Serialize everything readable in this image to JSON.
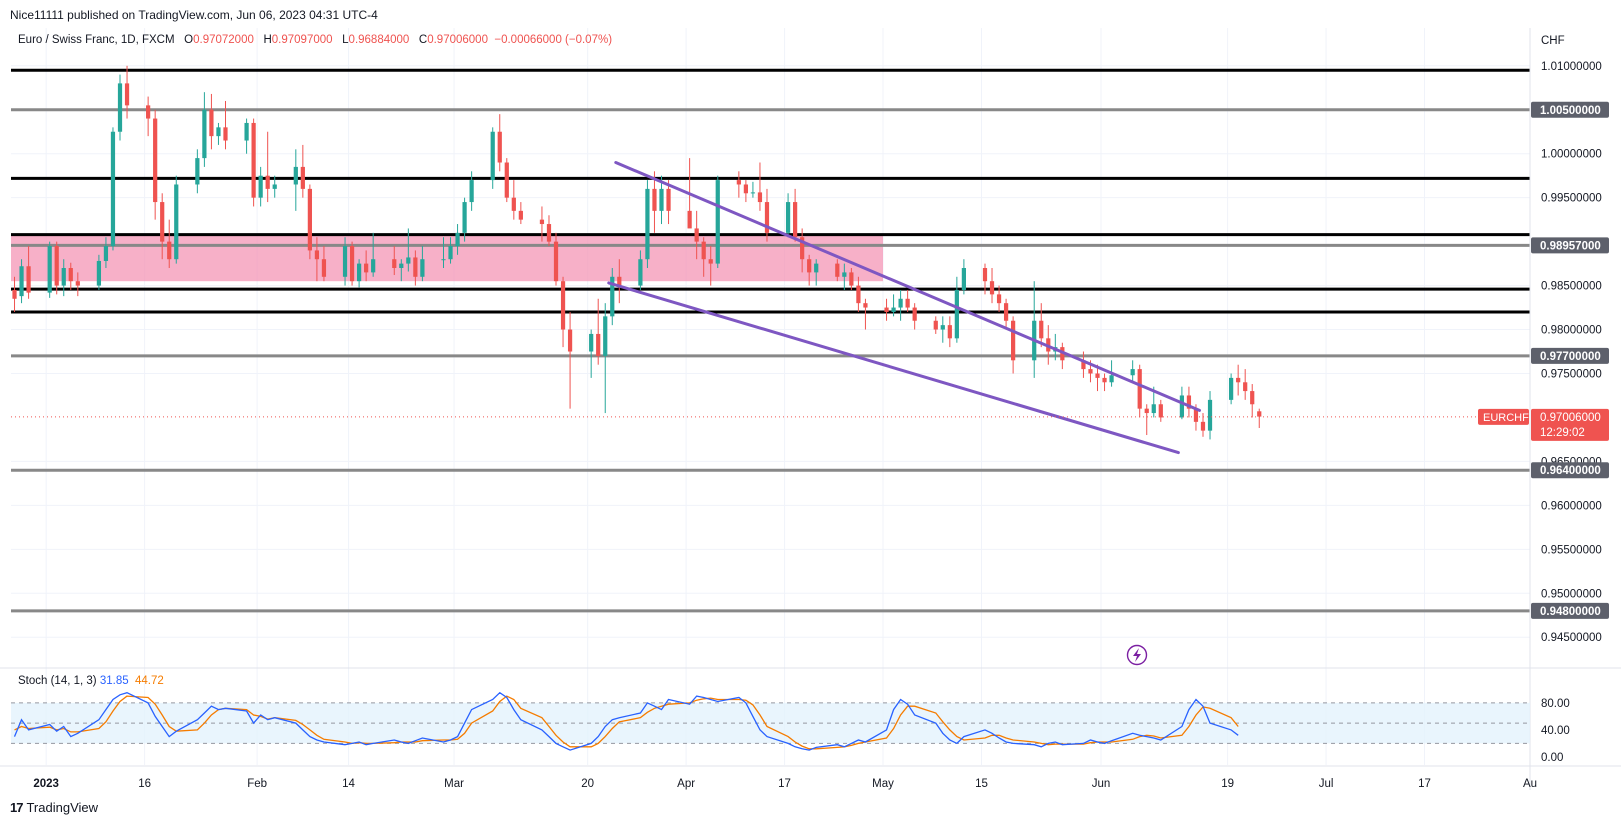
{
  "header": {
    "published_by": "Nice11111 published on TradingView.com, Jun 06, 2023 04:31 UTC-4"
  },
  "legend": {
    "symbol": "Euro / Swiss Franc, 1D, FXCM",
    "o_label": "O",
    "o_value": "0.97072000",
    "h_label": "H",
    "h_value": "0.97097000",
    "l_label": "L",
    "l_value": "0.96884000",
    "c_label": "C",
    "c_value": "0.97006000",
    "change": "−0.00066000 (−0.07%)"
  },
  "stoch_legend": {
    "name": "Stoch (14, 1, 3)",
    "k_value": "31.85",
    "d_value": "44.72"
  },
  "branding": {
    "logo": "17",
    "name": "TradingView"
  },
  "colors": {
    "up": "#26a69a",
    "down": "#ef5350",
    "channel": "#7e57c2",
    "zone": "#f48fb1",
    "stoch_k": "#2962ff",
    "stoch_d": "#f57c00",
    "stoch_band": "#e3f2fd"
  },
  "chart_data": {
    "type": "candlestick",
    "currency_label": "CHF",
    "y_ticks": [
      "1.01000000",
      "1.00000000",
      "0.99500000",
      "0.98500000",
      "0.98000000",
      "0.97500000",
      "0.96500000",
      "0.96000000",
      "0.95500000",
      "0.95000000",
      "0.94500000"
    ],
    "y_range": [
      0.9415,
      1.0143
    ],
    "x_tick_labels": [
      "2023",
      "16",
      "Feb",
      "14",
      "Mar",
      "20",
      "Apr",
      "17",
      "May",
      "15",
      "Jun",
      "19",
      "Jul",
      "17",
      "Au"
    ],
    "x_tick_dates": [
      "2023-01-02",
      "2023-01-16",
      "2023-02-01",
      "2023-02-14",
      "2023-03-01",
      "2023-03-20",
      "2023-04-03",
      "2023-04-17",
      "2023-05-01",
      "2023-05-15",
      "2023-06-01",
      "2023-06-19",
      "2023-07-03",
      "2023-07-17",
      "2023-08-01"
    ],
    "date_range": [
      "2022-12-28",
      "2023-08-01"
    ],
    "price_badges": [
      {
        "label": "1.00500000",
        "value": 1.005,
        "style": "gray"
      },
      {
        "label": "0.98957000",
        "value": 0.98957,
        "style": "gray"
      },
      {
        "label": "0.97700000",
        "value": 0.977,
        "style": "gray"
      },
      {
        "label": "0.96400000",
        "value": 0.964,
        "style": "gray"
      },
      {
        "label": "0.94800000",
        "value": 0.948,
        "style": "gray"
      }
    ],
    "current_price": {
      "symbol": "EURCHF",
      "value": 0.97006,
      "label": "0.97006000",
      "countdown": "12:29:02"
    },
    "horizontal_levels": [
      {
        "value": 1.0095,
        "color": "#000000"
      },
      {
        "value": 1.005,
        "color": "#888888"
      },
      {
        "value": 0.9972,
        "color": "#000000"
      },
      {
        "value": 0.9908,
        "color": "#000000"
      },
      {
        "value": 0.98957,
        "color": "#888888"
      },
      {
        "value": 0.9846,
        "color": "#000000"
      },
      {
        "value": 0.982,
        "color": "#000000"
      },
      {
        "value": 0.977,
        "color": "#888888"
      },
      {
        "value": 0.964,
        "color": "#888888"
      },
      {
        "value": 0.948,
        "color": "#888888"
      }
    ],
    "zone": {
      "top": 0.9907,
      "bottom": 0.9855,
      "start": "2022-12-28",
      "end": "2023-05-01"
    },
    "channel_lines": [
      {
        "x1": "2023-03-24",
        "y1": 0.999,
        "x2": "2023-06-15",
        "y2": 0.9708
      },
      {
        "x1": "2023-03-23",
        "y1": 0.9853,
        "x2": "2023-06-12",
        "y2": 0.966
      }
    ],
    "candles": [
      [
        "2022-12-28",
        0.9845,
        0.986,
        0.982,
        0.9835
      ],
      [
        "2022-12-29",
        0.9838,
        0.988,
        0.983,
        0.9872
      ],
      [
        "2022-12-30",
        0.9872,
        0.9895,
        0.9835,
        0.9842
      ],
      [
        "2023-01-02",
        0.9842,
        0.99,
        0.9836,
        0.9895
      ],
      [
        "2023-01-03",
        0.9895,
        0.99,
        0.984,
        0.985
      ],
      [
        "2023-01-04",
        0.985,
        0.988,
        0.9838,
        0.987
      ],
      [
        "2023-01-05",
        0.987,
        0.9876,
        0.9845,
        0.9855
      ],
      [
        "2023-01-06",
        0.9855,
        0.9865,
        0.9838,
        0.985
      ],
      [
        "2023-01-09",
        0.985,
        0.9885,
        0.9845,
        0.9878
      ],
      [
        "2023-01-10",
        0.9878,
        0.9905,
        0.987,
        0.9895
      ],
      [
        "2023-01-11",
        0.9895,
        1.003,
        0.989,
        1.0025
      ],
      [
        "2023-01-12",
        1.0025,
        1.009,
        1.0015,
        1.008
      ],
      [
        "2023-01-13",
        1.008,
        1.01,
        1.004,
        1.0055
      ],
      [
        "2023-01-16",
        1.0055,
        1.0065,
        1.002,
        1.004
      ],
      [
        "2023-01-17",
        1.004,
        1.005,
        0.9925,
        0.9945
      ],
      [
        "2023-01-18",
        0.9945,
        0.9955,
        0.988,
        0.99
      ],
      [
        "2023-01-19",
        0.99,
        0.9925,
        0.987,
        0.988
      ],
      [
        "2023-01-20",
        0.988,
        0.9975,
        0.9875,
        0.9965
      ],
      [
        "2023-01-23",
        0.9965,
        1.0005,
        0.9955,
        0.9995
      ],
      [
        "2023-01-24",
        0.9995,
        1.007,
        0.9985,
        1.005
      ],
      [
        "2023-01-25",
        1.005,
        1.0068,
        1.0005,
        1.002
      ],
      [
        "2023-01-26",
        1.002,
        1.0035,
        1.001,
        1.003
      ],
      [
        "2023-01-27",
        1.003,
        1.006,
        1.0005,
        1.0015
      ],
      [
        "2023-01-30",
        1.0015,
        1.004,
        1.0,
        1.0035
      ],
      [
        "2023-01-31",
        1.0035,
        1.004,
        0.994,
        0.995
      ],
      [
        "2023-02-01",
        0.995,
        0.9985,
        0.994,
        0.9975
      ],
      [
        "2023-02-02",
        0.9975,
        1.0025,
        0.9945,
        0.996
      ],
      [
        "2023-02-03",
        0.996,
        0.9975,
        0.995,
        0.9965
      ],
      [
        "2023-02-06",
        0.9965,
        1.0005,
        0.9935,
        0.9985
      ],
      [
        "2023-02-07",
        0.9985,
        1.001,
        0.995,
        0.996
      ],
      [
        "2023-02-08",
        0.996,
        0.9965,
        0.988,
        0.989
      ],
      [
        "2023-02-09",
        0.989,
        0.9905,
        0.9855,
        0.988
      ],
      [
        "2023-02-10",
        0.988,
        0.9895,
        0.9855,
        0.986
      ],
      [
        "2023-02-13",
        0.986,
        0.9905,
        0.985,
        0.9895
      ],
      [
        "2023-02-14",
        0.9895,
        0.99,
        0.985,
        0.9855
      ],
      [
        "2023-02-15",
        0.9855,
        0.988,
        0.9848,
        0.9875
      ],
      [
        "2023-02-16",
        0.9875,
        0.989,
        0.9855,
        0.9865
      ],
      [
        "2023-02-17",
        0.9865,
        0.991,
        0.986,
        0.988
      ],
      [
        "2023-02-20",
        0.988,
        0.9895,
        0.9862,
        0.987
      ],
      [
        "2023-02-21",
        0.987,
        0.988,
        0.9855,
        0.9875
      ],
      [
        "2023-02-22",
        0.9875,
        0.9915,
        0.9866,
        0.9882
      ],
      [
        "2023-02-23",
        0.9882,
        0.989,
        0.985,
        0.986
      ],
      [
        "2023-02-24",
        0.986,
        0.9895,
        0.9855,
        0.988
      ],
      [
        "2023-02-27",
        0.988,
        0.9905,
        0.987,
        0.988
      ],
      [
        "2023-02-28",
        0.988,
        0.9905,
        0.9875,
        0.9895
      ],
      [
        "2023-03-01",
        0.9895,
        0.992,
        0.9885,
        0.991
      ],
      [
        "2023-03-02",
        0.991,
        0.995,
        0.99,
        0.9945
      ],
      [
        "2023-03-03",
        0.9945,
        0.998,
        0.9935,
        0.997
      ],
      [
        "2023-03-06",
        0.997,
        1.003,
        0.996,
        1.0025
      ],
      [
        "2023-03-07",
        1.0025,
        1.0045,
        0.998,
        0.999
      ],
      [
        "2023-03-08",
        0.999,
        0.9995,
        0.9945,
        0.995
      ],
      [
        "2023-03-09",
        0.995,
        0.997,
        0.9925,
        0.9935
      ],
      [
        "2023-03-10",
        0.9935,
        0.9945,
        0.992,
        0.9925
      ],
      [
        "2023-03-13",
        0.9925,
        0.994,
        0.99,
        0.992
      ],
      [
        "2023-03-14",
        0.992,
        0.993,
        0.9895,
        0.99
      ],
      [
        "2023-03-15",
        0.99,
        0.991,
        0.985,
        0.9855
      ],
      [
        "2023-03-16",
        0.9855,
        0.986,
        0.978,
        0.98
      ],
      [
        "2023-03-17",
        0.98,
        0.982,
        0.971,
        0.9775
      ],
      [
        "2023-03-20",
        0.9775,
        0.98,
        0.9745,
        0.9795
      ],
      [
        "2023-03-21",
        0.9795,
        0.9835,
        0.976,
        0.977
      ],
      [
        "2023-03-22",
        0.977,
        0.983,
        0.9705,
        0.9815
      ],
      [
        "2023-03-23",
        0.9815,
        0.987,
        0.9805,
        0.986
      ],
      [
        "2023-03-24",
        0.986,
        0.988,
        0.983,
        0.985
      ],
      [
        "2023-03-27",
        0.985,
        0.989,
        0.9845,
        0.988
      ],
      [
        "2023-03-28",
        0.988,
        0.997,
        0.987,
        0.996
      ],
      [
        "2023-03-29",
        0.996,
        0.998,
        0.991,
        0.9935
      ],
      [
        "2023-03-30",
        0.9935,
        0.9975,
        0.992,
        0.996
      ],
      [
        "2023-03-31",
        0.996,
        0.997,
        0.992,
        0.9935
      ],
      [
        "2023-04-03",
        0.9935,
        0.9995,
        0.992,
        0.9915
      ],
      [
        "2023-04-04",
        0.9915,
        0.9935,
        0.988,
        0.99
      ],
      [
        "2023-04-05",
        0.99,
        0.9905,
        0.986,
        0.988
      ],
      [
        "2023-04-06",
        0.988,
        0.9895,
        0.985,
        0.9875
      ],
      [
        "2023-04-07",
        0.9875,
        0.9975,
        0.987,
        0.997
      ],
      [
        "2023-04-10",
        0.997,
        0.998,
        0.995,
        0.9965
      ],
      [
        "2023-04-11",
        0.9965,
        0.997,
        0.9945,
        0.9955
      ],
      [
        "2023-04-12",
        0.9955,
        0.9968,
        0.995,
        0.9956
      ],
      [
        "2023-04-13",
        0.9956,
        0.999,
        0.9935,
        0.9945
      ],
      [
        "2023-04-14",
        0.9945,
        0.996,
        0.99,
        0.991
      ],
      [
        "2023-04-17",
        0.991,
        0.9955,
        0.9905,
        0.9945
      ],
      [
        "2023-04-18",
        0.9945,
        0.996,
        0.99,
        0.9905
      ],
      [
        "2023-04-19",
        0.9905,
        0.9915,
        0.9865,
        0.988
      ],
      [
        "2023-04-20",
        0.988,
        0.9885,
        0.985,
        0.9865
      ],
      [
        "2023-04-21",
        0.9865,
        0.988,
        0.985,
        0.9875
      ],
      [
        "2023-04-24",
        0.9875,
        0.988,
        0.9855,
        0.986
      ],
      [
        "2023-04-25",
        0.986,
        0.9875,
        0.9845,
        0.9865
      ],
      [
        "2023-04-26",
        0.9865,
        0.987,
        0.9845,
        0.985
      ],
      [
        "2023-04-27",
        0.985,
        0.986,
        0.982,
        0.983
      ],
      [
        "2023-04-28",
        0.983,
        0.9835,
        0.98,
        0.9825
      ],
      [
        "2023-05-01",
        0.9825,
        0.9835,
        0.981,
        0.982
      ],
      [
        "2023-05-02",
        0.982,
        0.984,
        0.9815,
        0.9825
      ],
      [
        "2023-05-03",
        0.9825,
        0.9845,
        0.981,
        0.9835
      ],
      [
        "2023-05-04",
        0.9835,
        0.9845,
        0.982,
        0.9825
      ],
      [
        "2023-05-05",
        0.9825,
        0.983,
        0.98,
        0.981
      ],
      [
        "2023-05-08",
        0.981,
        0.9815,
        0.9795,
        0.98
      ],
      [
        "2023-05-09",
        0.98,
        0.9815,
        0.9785,
        0.9805
      ],
      [
        "2023-05-10",
        0.9805,
        0.9815,
        0.978,
        0.979
      ],
      [
        "2023-05-11",
        0.979,
        0.986,
        0.9785,
        0.9845
      ],
      [
        "2023-05-12",
        0.9845,
        0.988,
        0.984,
        0.987
      ],
      [
        "2023-05-15",
        0.987,
        0.9875,
        0.984,
        0.9855
      ],
      [
        "2023-05-16",
        0.9855,
        0.987,
        0.983,
        0.984
      ],
      [
        "2023-05-17",
        0.984,
        0.985,
        0.982,
        0.983
      ],
      [
        "2023-05-18",
        0.983,
        0.9835,
        0.98,
        0.981
      ],
      [
        "2023-05-19",
        0.981,
        0.9815,
        0.975,
        0.9765
      ],
      [
        "2023-05-22",
        0.9765,
        0.9855,
        0.9745,
        0.981
      ],
      [
        "2023-05-23",
        0.981,
        0.983,
        0.978,
        0.979
      ],
      [
        "2023-05-24",
        0.979,
        0.9805,
        0.976,
        0.9775
      ],
      [
        "2023-05-25",
        0.9775,
        0.9795,
        0.9765,
        0.978
      ],
      [
        "2023-05-26",
        0.978,
        0.9785,
        0.9755,
        0.9765
      ],
      [
        "2023-05-29",
        0.9765,
        0.9775,
        0.9745,
        0.9755
      ],
      [
        "2023-05-30",
        0.9755,
        0.9765,
        0.974,
        0.975
      ],
      [
        "2023-05-31",
        0.975,
        0.976,
        0.973,
        0.9745
      ],
      [
        "2023-06-01",
        0.9745,
        0.975,
        0.973,
        0.974
      ],
      [
        "2023-06-02",
        0.974,
        0.9765,
        0.9735,
        0.9748
      ],
      [
        "2023-06-05",
        0.9748,
        0.9765,
        0.974,
        0.9755
      ],
      [
        "2023-06-06",
        0.9755,
        0.976,
        0.97,
        0.971
      ],
      [
        "2023-06-07",
        0.971,
        0.9715,
        0.968,
        0.9705
      ],
      [
        "2023-06-08",
        0.9705,
        0.9735,
        0.97,
        0.9715
      ],
      [
        "2023-06-09",
        0.9715,
        0.972,
        0.9695,
        0.97
      ],
      [
        "2023-06-12",
        0.97,
        0.9735,
        0.9698,
        0.9725
      ],
      [
        "2023-06-13",
        0.9725,
        0.9735,
        0.97,
        0.971
      ],
      [
        "2023-06-14",
        0.971,
        0.9715,
        0.9685,
        0.9695
      ],
      [
        "2023-06-15",
        0.9695,
        0.9705,
        0.9678,
        0.9685
      ],
      [
        "2023-06-16",
        0.9685,
        0.973,
        0.9675,
        0.972
      ],
      [
        "2023-06-19",
        0.972,
        0.975,
        0.9715,
        0.9745
      ],
      [
        "2023-06-20",
        0.9745,
        0.976,
        0.9725,
        0.974
      ],
      [
        "2023-06-21",
        0.974,
        0.9755,
        0.972,
        0.973
      ],
      [
        "2023-06-22",
        0.973,
        0.9738,
        0.97,
        0.9715
      ],
      [
        "2023-06-23",
        0.9707,
        0.971,
        0.9688,
        0.9701
      ]
    ],
    "stochastic": {
      "name": "Stoch (14, 1, 3)",
      "y_ticks": [
        "80.00",
        "40.00",
        "0.00"
      ],
      "y_tick_values": [
        80,
        40,
        0
      ],
      "upper_band": 80,
      "middle": 50,
      "lower_band": 20,
      "y_range": [
        -12,
        102
      ],
      "k": [
        30,
        55,
        40,
        48,
        38,
        45,
        30,
        35,
        55,
        70,
        85,
        92,
        95,
        80,
        60,
        45,
        30,
        38,
        55,
        65,
        75,
        70,
        72,
        68,
        50,
        62,
        55,
        58,
        50,
        40,
        30,
        25,
        22,
        18,
        20,
        22,
        18,
        20,
        25,
        22,
        20,
        24,
        28,
        22,
        25,
        30,
        50,
        70,
        85,
        95,
        88,
        70,
        55,
        40,
        30,
        20,
        15,
        10,
        20,
        30,
        45,
        55,
        58,
        65,
        80,
        75,
        70,
        85,
        78,
        90,
        88,
        85,
        82,
        88,
        80,
        60,
        40,
        30,
        20,
        15,
        12,
        10,
        14,
        18,
        15,
        20,
        25,
        22,
        40,
        70,
        85,
        78,
        62,
        50,
        35,
        25,
        20,
        30,
        40,
        35,
        28,
        22,
        20,
        18,
        15,
        20,
        22,
        18,
        20,
        25,
        22,
        20,
        24,
        35,
        32,
        30,
        28,
        25,
        45,
        70,
        85,
        75,
        50,
        40,
        32
      ],
      "d": [
        40,
        45,
        42,
        44,
        40,
        42,
        37,
        37,
        42,
        52,
        68,
        82,
        90,
        88,
        78,
        62,
        45,
        38,
        40,
        50,
        62,
        70,
        72,
        70,
        62,
        60,
        56,
        58,
        54,
        48,
        40,
        32,
        26,
        22,
        20,
        21,
        20,
        20,
        21,
        22,
        22,
        22,
        24,
        25,
        25,
        26,
        35,
        50,
        68,
        82,
        90,
        85,
        72,
        58,
        45,
        32,
        22,
        15,
        15,
        20,
        30,
        42,
        52,
        58,
        66,
        72,
        75,
        78,
        80,
        84,
        86,
        87,
        85,
        85,
        84,
        77,
        62,
        45,
        30,
        22,
        16,
        12,
        12,
        14,
        15,
        17,
        20,
        22,
        28,
        42,
        62,
        75,
        75,
        65,
        52,
        40,
        30,
        25,
        28,
        32,
        32,
        28,
        25,
        22,
        20,
        18,
        19,
        19,
        19,
        21,
        22,
        22,
        22,
        26,
        30,
        32,
        31,
        28,
        32,
        45,
        62,
        74,
        72,
        58,
        45
      ]
    }
  }
}
